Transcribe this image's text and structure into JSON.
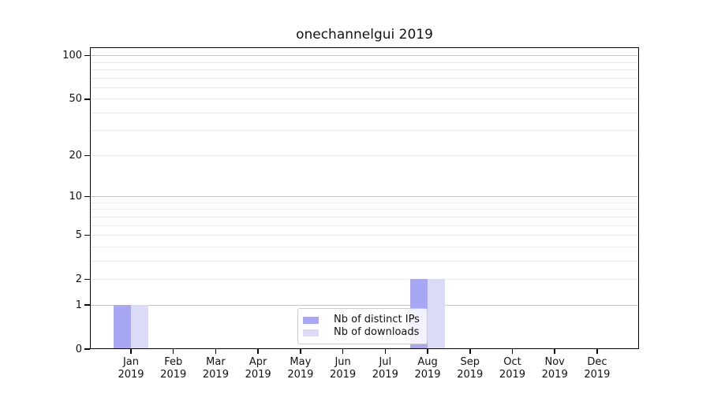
{
  "chart_data": {
    "type": "bar",
    "title": "onechannelgui 2019",
    "categories": [
      {
        "month": "Jan",
        "year": "2019"
      },
      {
        "month": "Feb",
        "year": "2019"
      },
      {
        "month": "Mar",
        "year": "2019"
      },
      {
        "month": "Apr",
        "year": "2019"
      },
      {
        "month": "May",
        "year": "2019"
      },
      {
        "month": "Jun",
        "year": "2019"
      },
      {
        "month": "Jul",
        "year": "2019"
      },
      {
        "month": "Aug",
        "year": "2019"
      },
      {
        "month": "Sep",
        "year": "2019"
      },
      {
        "month": "Oct",
        "year": "2019"
      },
      {
        "month": "Nov",
        "year": "2019"
      },
      {
        "month": "Dec",
        "year": "2019"
      }
    ],
    "series": [
      {
        "name": "Nb of distinct IPs",
        "color": "#a7a7f4",
        "values": [
          1,
          0,
          0,
          0,
          0,
          0,
          0,
          2,
          0,
          0,
          0,
          0
        ]
      },
      {
        "name": "Nb of downloads",
        "color": "#dbdbf8",
        "values": [
          1,
          0,
          0,
          0,
          0,
          0,
          0,
          2,
          0,
          0,
          0,
          0
        ]
      }
    ],
    "yscale": "log1p",
    "ylim": [
      0,
      115
    ],
    "ytick_values": [
      0,
      1,
      2,
      5,
      10,
      20,
      50,
      100
    ],
    "major_grid_values": [
      1,
      10,
      100
    ],
    "minor_grid_values": [
      2,
      3,
      4,
      5,
      6,
      7,
      8,
      9,
      20,
      30,
      40,
      50,
      60,
      70,
      80,
      90
    ],
    "grid": true,
    "legend_position": "lower-center-inside",
    "xlabel": "",
    "ylabel": ""
  },
  "style": {
    "background": "#ffffff",
    "text_color": "#111111",
    "axis_color": "#000000",
    "grid_major_color": "#c4c4c4",
    "grid_minor_color": "#ececec",
    "legend_border_color": "#cccccc",
    "series_colors": [
      "#a7a7f4",
      "#dbdbf8"
    ]
  }
}
